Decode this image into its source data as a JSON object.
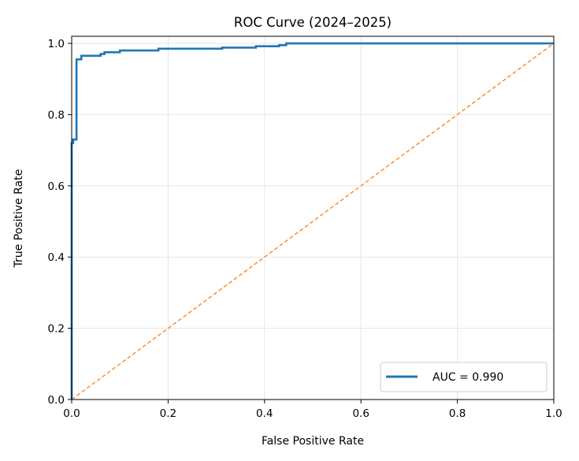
{
  "chart_data": {
    "type": "line",
    "title": "ROC Curve (2024–2025)",
    "xlabel": "False Positive Rate",
    "ylabel": "True Positive Rate",
    "xlim": [
      0,
      1
    ],
    "ylim": [
      0,
      1.02
    ],
    "xticks": [
      0,
      0.2,
      0.4,
      0.6,
      0.8,
      1.0
    ],
    "xtick_labels": [
      "0.0",
      "0.2",
      "0.4",
      "0.6",
      "0.8",
      "1.0"
    ],
    "yticks": [
      0,
      0.2,
      0.4,
      0.6,
      0.8,
      1.0
    ],
    "ytick_labels": [
      "0.0",
      "0.2",
      "0.4",
      "0.6",
      "0.8",
      "1.0"
    ],
    "grid": true,
    "legend_position": "lower-right",
    "series": [
      {
        "name": "AUC = 0.990",
        "style": "solid",
        "color": "#1f77b4",
        "points": [
          [
            0,
            0
          ],
          [
            0,
            0.72
          ],
          [
            0.003,
            0.72
          ],
          [
            0.003,
            0.73
          ],
          [
            0.01,
            0.73
          ],
          [
            0.01,
            0.955
          ],
          [
            0.02,
            0.955
          ],
          [
            0.02,
            0.965
          ],
          [
            0.06,
            0.965
          ],
          [
            0.06,
            0.97
          ],
          [
            0.068,
            0.97
          ],
          [
            0.068,
            0.975
          ],
          [
            0.1,
            0.975
          ],
          [
            0.1,
            0.98
          ],
          [
            0.18,
            0.98
          ],
          [
            0.18,
            0.985
          ],
          [
            0.312,
            0.985
          ],
          [
            0.312,
            0.988
          ],
          [
            0.382,
            0.988
          ],
          [
            0.382,
            0.992
          ],
          [
            0.43,
            0.992
          ],
          [
            0.43,
            0.995
          ],
          [
            0.445,
            0.995
          ],
          [
            0.445,
            1.0
          ],
          [
            1.0,
            1.0
          ]
        ]
      },
      {
        "name": "",
        "style": "dashed",
        "color": "#ff7f0e",
        "points": [
          [
            0,
            0
          ],
          [
            1,
            1
          ]
        ]
      }
    ]
  }
}
